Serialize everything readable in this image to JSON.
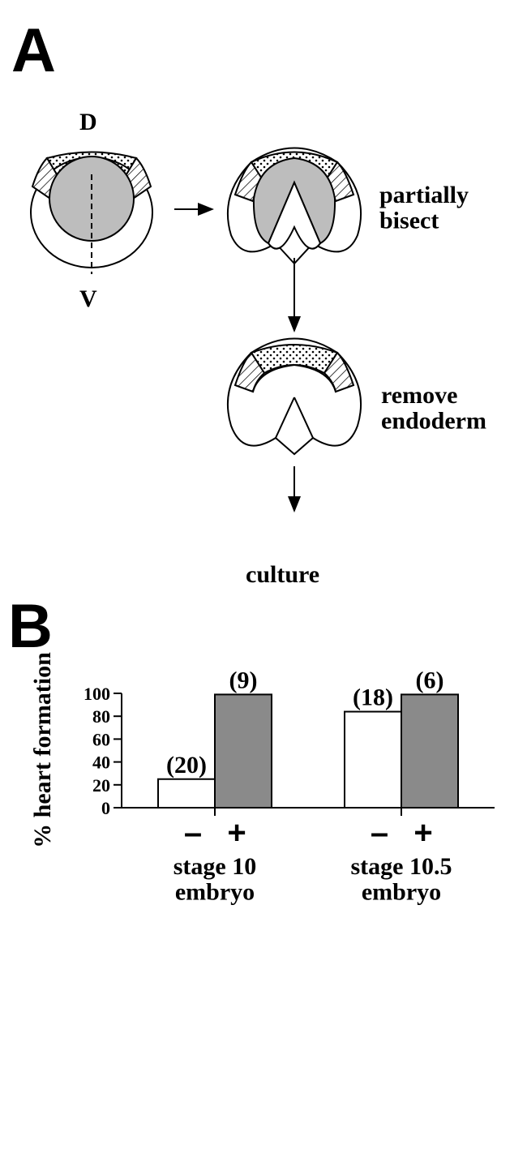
{
  "panel_a": {
    "label": "A",
    "dorsal": "D",
    "ventral": "V",
    "steps": [
      "partially\nbisect",
      "remove\nendoderm",
      "culture"
    ]
  },
  "chart_data": {
    "type": "bar",
    "panel_label": "B",
    "y_label": "% heart formation",
    "categories": [
      "stage 10\nembryo",
      "stage 10.5\nembryo"
    ],
    "series": [
      {
        "name": "–",
        "color": "#ffffff",
        "values": [
          25,
          84
        ],
        "annotations": [
          "(20)",
          "(18)"
        ]
      },
      {
        "name": "+",
        "color": "#8a8a8a",
        "values": [
          99,
          99
        ],
        "annotations": [
          "(9)",
          "(6)"
        ]
      }
    ],
    "ylim": [
      0,
      100
    ],
    "yticks": [
      0,
      20,
      40,
      60,
      80,
      100
    ]
  }
}
